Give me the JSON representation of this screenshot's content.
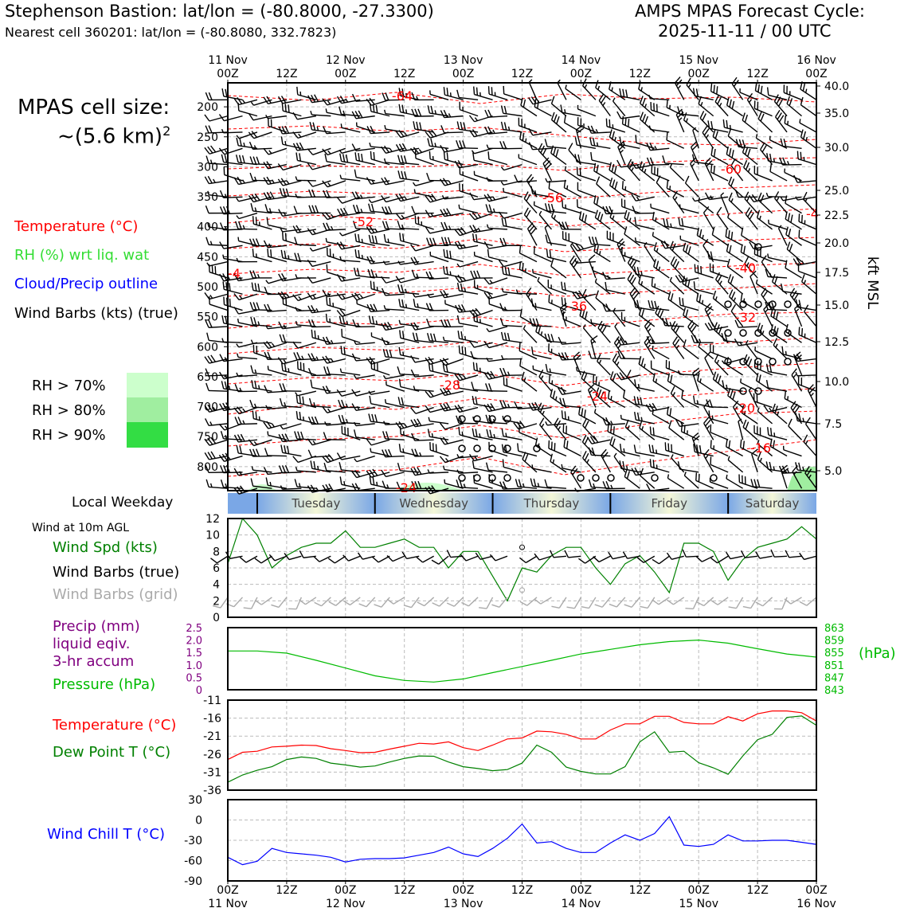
{
  "header": {
    "title": "Stephenson Bastion: lat/lon = (-80.8000, -27.3300)",
    "subtitle": "Nearest cell 360201: lat/lon = (-80.8080, 332.7823)",
    "cycle_line1": "AMPS MPAS Forecast Cycle:",
    "cycle_line2": "2025-11-11 / 00 UTC"
  },
  "left_panel": {
    "cell_size_line1": "MPAS cell size:",
    "cell_size_line2": "~(5.6 km)",
    "cell_size_sup": "2",
    "legend_temperature": "Temperature (°C)",
    "legend_rh": "RH (%) wrt liq. wat",
    "legend_cloud": "Cloud/Precip outline",
    "legend_wind": "Wind Barbs (kts) (true)",
    "rh_levels": [
      "RH > 70%",
      "RH > 80%",
      "RH > 90%"
    ],
    "local_weekday": "Local Weekday",
    "wind_10m": "Wind at 10m AGL",
    "wind_spd": "Wind Spd (kts)",
    "wind_barbs_true": "Wind Barbs (true)",
    "wind_barbs_grid": "Wind Barbs (grid)",
    "precip_line1": "Precip (mm)",
    "precip_line2": "liquid eqiv.",
    "precip_line3": "3-hr accum",
    "pressure": "Pressure (hPa)",
    "temperature": "Temperature (°C)",
    "dewpoint": "Dew Point T (°C)",
    "windchill": "Wind Chill T (°C)"
  },
  "colors": {
    "temperature": "#ff0000",
    "rh": "#33dd33",
    "cloud": "#0000ff",
    "dewpoint": "#008000",
    "windchill": "#0000ff",
    "precip": "#800080",
    "pressure": "#00bb00",
    "grid_barb": "#aaaaaa",
    "rh70": "#ccffcc",
    "rh80": "#a0eea0",
    "rh90": "#33dd44"
  },
  "chart_data": [
    {
      "type": "line",
      "name": "cross_section",
      "title": "Wind barbs / Temperature / RH cross-section",
      "x_top_labels": [
        {
          "t": 0,
          "line1": "11 Nov",
          "line2": "00Z"
        },
        {
          "t": 12,
          "line1": "",
          "line2": "12Z"
        },
        {
          "t": 24,
          "line1": "12 Nov",
          "line2": "00Z"
        },
        {
          "t": 36,
          "line1": "",
          "line2": "12Z"
        },
        {
          "t": 48,
          "line1": "13 Nov",
          "line2": "00Z"
        },
        {
          "t": 60,
          "line1": "",
          "line2": "12Z"
        },
        {
          "t": 72,
          "line1": "14 Nov",
          "line2": "00Z"
        },
        {
          "t": 84,
          "line1": "",
          "line2": "12Z"
        },
        {
          "t": 96,
          "line1": "15 Nov",
          "line2": "00Z"
        },
        {
          "t": 108,
          "line1": "",
          "line2": "12Z"
        },
        {
          "t": 120,
          "line1": "16 Nov",
          "line2": "00Z"
        }
      ],
      "pressure_ticks": [
        "200",
        "250",
        "300",
        "350",
        "400",
        "450",
        "500",
        "550",
        "600",
        "650",
        "700",
        "750",
        "800"
      ],
      "height_ticks_kft": [
        "40.0",
        "35.0",
        "30.0",
        "25.0",
        "22.5",
        "20.0",
        "17.5",
        "15.0",
        "12.5",
        "10.0",
        "7.5",
        "5.0"
      ],
      "right_axis_label": "kft MSL",
      "isotherm_labels": [
        "-64",
        "-60",
        "-56",
        "-52",
        "-4",
        "-4",
        "-40",
        "-36",
        "-32",
        "-28",
        "-24",
        "-20",
        "-16",
        "-24"
      ],
      "wind_barbs": "per-level wind barbs every 3 h",
      "ylim_hpa": [
        840,
        160
      ]
    },
    {
      "type": "line",
      "name": "weekday_bar",
      "categories": [
        "Tuesday",
        "Wednesday",
        "Thursday",
        "Friday",
        "Saturday"
      ]
    },
    {
      "type": "line",
      "name": "wind_speed_10m",
      "ylim": [
        0,
        12
      ],
      "yticks": [
        "0",
        "2",
        "4",
        "6",
        "8",
        "10",
        "12"
      ],
      "x_hours": [
        0,
        3,
        6,
        9,
        12,
        15,
        18,
        21,
        24,
        27,
        30,
        33,
        36,
        39,
        42,
        45,
        48,
        51,
        54,
        57,
        60,
        63,
        66,
        69,
        72,
        75,
        78,
        81,
        84,
        87,
        90,
        93,
        96,
        99,
        102,
        105,
        108,
        111,
        114,
        117,
        120
      ],
      "values": [
        6.5,
        12,
        10,
        6,
        7.5,
        8.5,
        9,
        9,
        10.5,
        8.5,
        8.5,
        9,
        9.5,
        8.5,
        8.5,
        6,
        8,
        8,
        5,
        2,
        6,
        5.5,
        7.5,
        8.5,
        8.5,
        6,
        4,
        6.5,
        7.5,
        5.5,
        3,
        9,
        9,
        8,
        4.5,
        7,
        8.5,
        9,
        9.5,
        11,
        9.5
      ]
    },
    {
      "type": "line",
      "name": "precip_pressure",
      "precip_ylim": [
        0,
        2.5
      ],
      "precip_ticks": [
        "0",
        "0.5",
        "1.0",
        "1.5",
        "2.0",
        "2.5"
      ],
      "pressure_ylim": [
        843,
        863
      ],
      "pressure_ticks": [
        "843",
        "847",
        "851",
        "855",
        "859",
        "863"
      ],
      "pressure_axis_label": "(hPa)",
      "x_hours": [
        0,
        6,
        12,
        18,
        24,
        30,
        36,
        42,
        48,
        54,
        60,
        66,
        72,
        78,
        84,
        90,
        96,
        102,
        108,
        114,
        120
      ],
      "pressure_values": [
        855.5,
        855.5,
        854.8,
        852.5,
        850,
        847.5,
        846,
        845.5,
        846.5,
        848.5,
        850.5,
        852.5,
        854.5,
        856,
        857.5,
        858.5,
        859,
        858,
        856.2,
        854.5,
        853.5
      ],
      "precip_values": [
        0,
        0,
        0,
        0,
        0,
        0,
        0,
        0,
        0,
        0,
        0,
        0,
        0,
        0,
        0,
        0,
        0,
        0,
        0,
        0,
        0
      ]
    },
    {
      "type": "line",
      "name": "temperature_dewpoint",
      "ylim": [
        -36,
        -11
      ],
      "yticks": [
        "-11",
        "-16",
        "-21",
        "-26",
        "-31",
        "-36"
      ],
      "x_hours": [
        0,
        3,
        6,
        9,
        12,
        15,
        18,
        21,
        24,
        27,
        30,
        33,
        36,
        39,
        42,
        45,
        48,
        51,
        54,
        57,
        60,
        63,
        66,
        69,
        72,
        75,
        78,
        81,
        84,
        87,
        90,
        93,
        96,
        99,
        102,
        105,
        108,
        111,
        114,
        117,
        120
      ],
      "series": [
        {
          "name": "Temperature",
          "values": [
            -27.5,
            -25.5,
            -25.2,
            -24,
            -23.8,
            -23.5,
            -23.6,
            -24.5,
            -25,
            -25.6,
            -25.5,
            -24.6,
            -23.8,
            -23,
            -23.2,
            -22.6,
            -24.2,
            -25,
            -23.5,
            -21.8,
            -21.5,
            -19.6,
            -19.8,
            -20.5,
            -21.8,
            -21.8,
            -19.3,
            -17.6,
            -17.6,
            -15.5,
            -15.5,
            -17.2,
            -17.6,
            -17.6,
            -15.6,
            -16.8,
            -14.8,
            -14,
            -14,
            -14.5,
            -16.8
          ]
        },
        {
          "name": "Dew Point",
          "values": [
            -33.8,
            -31.8,
            -30.5,
            -29.5,
            -27.5,
            -26.8,
            -27.2,
            -28.5,
            -29,
            -29.6,
            -29.3,
            -28.2,
            -27.2,
            -26.5,
            -26.6,
            -28.2,
            -29.5,
            -30,
            -30.6,
            -30.3,
            -28.5,
            -23.5,
            -25.5,
            -29.6,
            -30.8,
            -31.5,
            -31.5,
            -29.5,
            -22.6,
            -19.8,
            -25.5,
            -25.2,
            -28.4,
            -29.8,
            -31.6,
            -26.5,
            -22,
            -20.5,
            -15.8,
            -15.4,
            -18
          ]
        }
      ]
    },
    {
      "type": "line",
      "name": "wind_chill",
      "ylim": [
        -90,
        30
      ],
      "yticks": [
        "30",
        "0",
        "-30",
        "-60",
        "-90"
      ],
      "x_bottom_labels": [
        {
          "t": 0,
          "line1": "00Z",
          "line2": "11 Nov"
        },
        {
          "t": 12,
          "line1": "12Z",
          "line2": ""
        },
        {
          "t": 24,
          "line1": "00Z",
          "line2": "12 Nov"
        },
        {
          "t": 36,
          "line1": "12Z",
          "line2": ""
        },
        {
          "t": 48,
          "line1": "00Z",
          "line2": "13 Nov"
        },
        {
          "t": 60,
          "line1": "12Z",
          "line2": ""
        },
        {
          "t": 72,
          "line1": "00Z",
          "line2": "14 Nov"
        },
        {
          "t": 84,
          "line1": "12Z",
          "line2": ""
        },
        {
          "t": 96,
          "line1": "00Z",
          "line2": "15 Nov"
        },
        {
          "t": 108,
          "line1": "12Z",
          "line2": ""
        },
        {
          "t": 120,
          "line1": "00Z",
          "line2": "16 Nov"
        }
      ],
      "x_hours": [
        0,
        3,
        6,
        9,
        12,
        15,
        18,
        21,
        24,
        27,
        30,
        33,
        36,
        39,
        42,
        45,
        48,
        51,
        54,
        57,
        60,
        63,
        66,
        69,
        72,
        75,
        78,
        81,
        84,
        87,
        90,
        93,
        96,
        99,
        102,
        105,
        108,
        111,
        114,
        117,
        120
      ],
      "values": [
        -55,
        -66,
        -61,
        -42,
        -48,
        -50,
        -52,
        -55,
        -62,
        -58,
        -57,
        -57,
        -56,
        -52,
        -48,
        -40,
        -50,
        -54,
        -42,
        -27,
        -6,
        -34,
        -32,
        -42,
        -48,
        -48,
        -34,
        -22,
        -30,
        -20,
        5,
        -37,
        -39,
        -36,
        -22,
        -31,
        -31,
        -30,
        -30,
        -33,
        -36
      ]
    }
  ]
}
